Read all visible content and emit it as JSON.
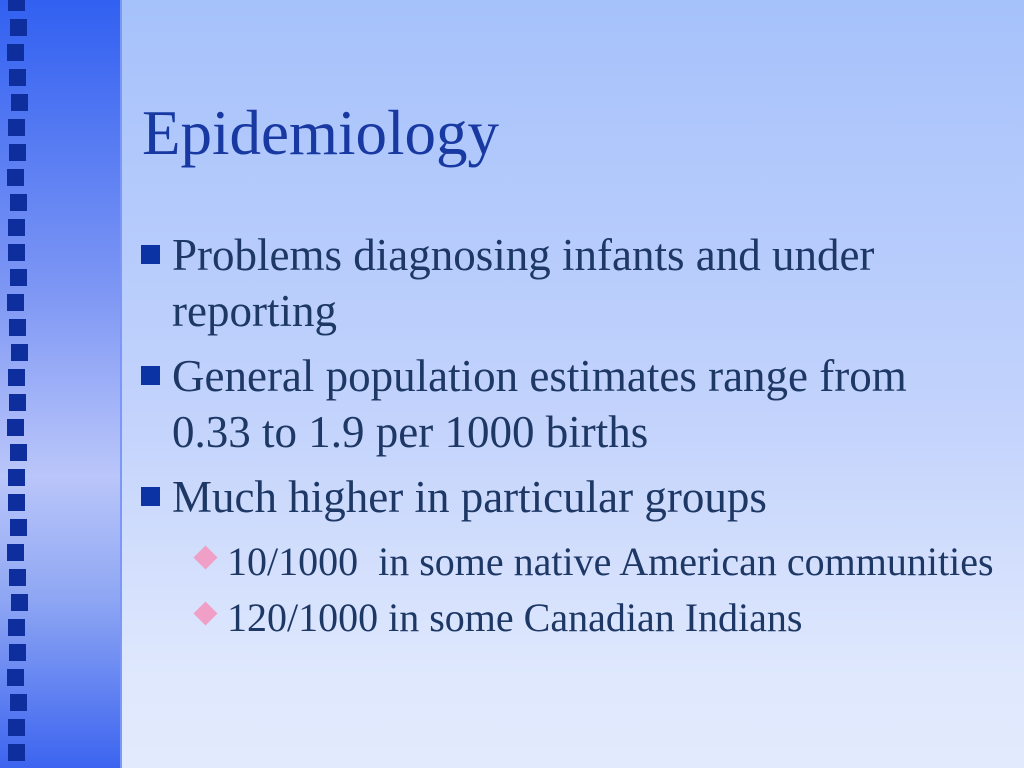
{
  "slide": {
    "title": "Epidemiology",
    "bullets": [
      {
        "level": 1,
        "text": "Problems diagnosing infants and under reporting"
      },
      {
        "level": 1,
        "text": "General population estimates range from 0.33 to 1.9 per 1000 births"
      },
      {
        "level": 1,
        "text": "Much higher in particular groups"
      },
      {
        "level": 2,
        "text": "10/1000  in some native American communities"
      },
      {
        "level": 2,
        "text": "120/1000 in some Canadian Indians"
      }
    ],
    "icons": {
      "level1_bullet": "square-bullet-icon",
      "level2_bullet": "diamond-bullet-icon",
      "sidebar_decoration": "square-icon"
    },
    "colors": {
      "title_text": "#1939a2",
      "body_text": "#1e3866",
      "bullet_square": "#0c33a4",
      "sub_bullet_diamond": "#f0a0c6",
      "sidebar_square": "#0d2e9c",
      "sidebar_gradient_top": "#3160f1",
      "sidebar_gradient_mid": "#bac6fa",
      "sidebar_gradient_bottom": "#3c64f0",
      "background_top": "#a6c2fb",
      "background_bottom": "#e2eafd"
    }
  }
}
